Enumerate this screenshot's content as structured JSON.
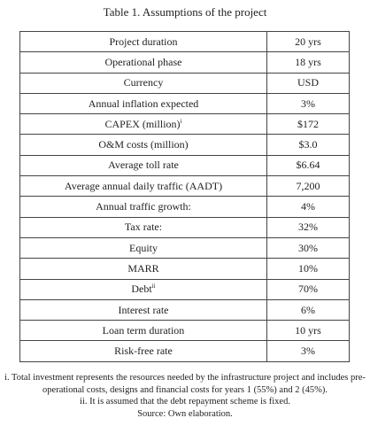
{
  "title": "Table 1. Assumptions of the project",
  "table": {
    "rows": [
      {
        "label": "Project duration",
        "value": "20 yrs"
      },
      {
        "label": "Operational phase",
        "value": "18 yrs"
      },
      {
        "label": "Currency",
        "value": "USD"
      },
      {
        "label": "Annual inflation expected",
        "value": "3%"
      },
      {
        "label": "CAPEX (million)",
        "sup": "i",
        "value": "$172"
      },
      {
        "label": "O&M costs (million)",
        "value": "$3.0"
      },
      {
        "label": "Average toll rate",
        "value": "$6.64"
      },
      {
        "label": "Average annual daily traffic (AADT)",
        "value": "7,200"
      },
      {
        "label": "Annual traffic growth:",
        "value": "4%"
      },
      {
        "label": "Tax rate:",
        "value": "32%"
      },
      {
        "label": "Equity",
        "value": "30%"
      },
      {
        "label": "MARR",
        "value": "10%"
      },
      {
        "label": "Debt",
        "sup": "ii",
        "value": "70%"
      },
      {
        "label": "Interest rate",
        "value": "6%"
      },
      {
        "label": "Loan term duration",
        "value": "10 yrs"
      },
      {
        "label": "Risk-free rate",
        "value": "3%"
      }
    ]
  },
  "notes": [
    "i. Total investment represents the resources needed by the infrastructure project and includes pre-operational costs, designs and financial costs for years 1 (55%) and 2 (45%).",
    "ii. It is assumed that the debt repayment scheme is fixed.",
    "Source: Own elaboration."
  ]
}
